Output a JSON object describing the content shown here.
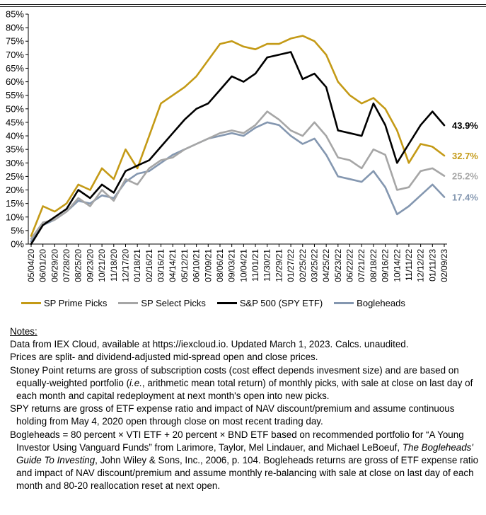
{
  "chart_data": {
    "type": "line",
    "ylim": [
      0,
      85
    ],
    "yticks": [
      "0%",
      "5%",
      "10%",
      "15%",
      "20%",
      "25%",
      "30%",
      "35%",
      "40%",
      "45%",
      "50%",
      "55%",
      "60%",
      "65%",
      "70%",
      "75%",
      "80%",
      "85%"
    ],
    "x_ticks": [
      "05/04/20",
      "06/01/20",
      "06/29/20",
      "07/28/20",
      "08/25/20",
      "09/23/20",
      "10/21/20",
      "11/18/20",
      "12/17/20",
      "01/18/21",
      "02/16/21",
      "03/16/21",
      "04/14/21",
      "05/12/21",
      "06/10/21",
      "07/09/21",
      "08/06/21",
      "09/03/21",
      "10/04/21",
      "11/01/21",
      "11/30/21",
      "12/29/21",
      "01/27/22",
      "02/25/22",
      "03/25/22",
      "04/25/22",
      "05/23/22",
      "06/22/22",
      "07/21/22",
      "08/18/22",
      "09/16/22",
      "10/14/22",
      "11/11/22",
      "12/12/22",
      "01/11/23",
      "02/09/23"
    ],
    "series": [
      {
        "name": "SP Prime Picks",
        "color": "#C49A16",
        "end_label": "32.7%",
        "values": [
          3,
          14,
          12,
          15,
          22,
          20,
          28,
          24,
          35,
          28,
          40,
          52,
          55,
          58,
          62,
          68,
          74,
          75,
          73,
          72,
          74,
          74,
          76,
          77,
          75,
          70,
          60,
          55,
          52,
          54,
          50,
          42,
          30,
          37,
          36,
          32.7
        ]
      },
      {
        "name": "SP Select Picks",
        "color": "#A6A6A6",
        "end_label": "25.2%",
        "values": [
          2,
          8,
          9,
          12,
          17,
          14,
          20,
          16,
          24,
          22,
          28,
          31,
          32,
          35,
          37,
          39,
          41,
          42,
          41,
          44,
          49,
          46,
          42,
          40,
          45,
          40,
          32,
          31,
          28,
          35,
          33,
          20,
          21,
          27,
          28,
          25.2
        ]
      },
      {
        "name": "S&P 500 (SPY ETF)",
        "color": "#000000",
        "end_label": "43.9%",
        "values": [
          0,
          7,
          10,
          13,
          20,
          17,
          22,
          19,
          27,
          29,
          31,
          36,
          41,
          46,
          50,
          52,
          57,
          62,
          60,
          63,
          69,
          70,
          71,
          61,
          63,
          58,
          42,
          41,
          40,
          52,
          44,
          30,
          37,
          44,
          49,
          43.9
        ]
      },
      {
        "name": "Bogleheads",
        "color": "#8497B0",
        "end_label": "17.4%",
        "values": [
          1,
          7,
          9,
          12,
          16,
          15,
          18,
          17,
          23,
          26,
          27,
          30,
          33,
          35,
          37,
          39,
          40,
          41,
          40,
          43,
          45,
          44,
          40,
          37,
          39,
          33,
          25,
          24,
          23,
          27,
          21,
          11,
          14,
          18,
          22,
          17.4
        ]
      }
    ]
  },
  "notes": {
    "heading": "Notes:",
    "line1": "Data from IEX Cloud, available at https://iexcloud.io. Updated March 1, 2023. Calcs. unaudited.",
    "line2": "Prices are split- and dividend-adjusted mid-spread open and close prices.",
    "stoney_a": "Stoney Point returns are gross of subscription costs (cost effect depends invesment size) and are based on equally-weighted portfolio (",
    "stoney_ie": "i.e.",
    "stoney_b": ", arithmetic mean total return) of monthly picks, with sale at close on last day of each month and capital redeployment at next month's open into new picks.",
    "spy": "SPY returns are gross of ETF expense ratio and impact of NAV discount/premium and assume continuous holding from May 4, 2020 open through close on most recent trading day.",
    "bogle_a": "Bogleheads = 80 percent × VTI ETF + 20 percent × BND ETF based on recommended portfolio for “A Young Investor Using Vanguard Funds” from Larimore, Taylor, Mel Lindauer, and Michael LeBoeuf, ",
    "bogle_book": "The Bogleheads' Guide To Investing",
    "bogle_b": ", John Wiley & Sons, Inc., 2006, p. 104. Bogleheads returns are gross of ETF expense ratio and impact of NAV discount/premium and assume monthly re-balancing with sale at close on last day of each month and 80-20 reallocation reset at next open."
  }
}
